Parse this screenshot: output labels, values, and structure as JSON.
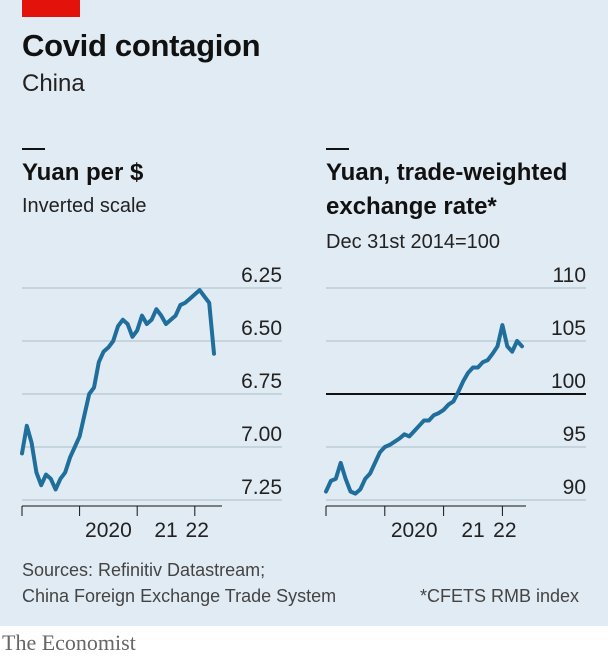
{
  "header": {
    "title": "Covid contagion",
    "subtitle": "China",
    "accent_color": "#e3120b"
  },
  "chart_data": [
    {
      "type": "line",
      "title": "Yuan per $",
      "subtitle": "Inverted scale",
      "y_inverted": true,
      "ylim": [
        6.25,
        7.25
      ],
      "yticks": [
        "6.25",
        "6.50",
        "6.75",
        "7.00",
        "7.25"
      ],
      "xticks": [
        "2020",
        "21",
        "22"
      ],
      "x_range": [
        "2019-01",
        "2022-05"
      ],
      "grid": true,
      "color": "#1f6e9c",
      "x": [
        "2019-01",
        "2019-02",
        "2019-03",
        "2019-04",
        "2019-05",
        "2019-06",
        "2019-07",
        "2019-08",
        "2019-09",
        "2019-10",
        "2019-11",
        "2019-12",
        "2020-01",
        "2020-02",
        "2020-03",
        "2020-04",
        "2020-05",
        "2020-06",
        "2020-07",
        "2020-08",
        "2020-09",
        "2020-10",
        "2020-11",
        "2020-12",
        "2021-01",
        "2021-02",
        "2021-03",
        "2021-04",
        "2021-05",
        "2021-06",
        "2021-07",
        "2021-08",
        "2021-09",
        "2021-10",
        "2021-11",
        "2021-12",
        "2022-01",
        "2022-02",
        "2022-03",
        "2022-04",
        "2022-05"
      ],
      "values": [
        7.03,
        6.9,
        6.98,
        7.12,
        7.18,
        7.13,
        7.15,
        7.2,
        7.15,
        7.12,
        7.05,
        7.0,
        6.95,
        6.85,
        6.75,
        6.72,
        6.6,
        6.55,
        6.53,
        6.5,
        6.43,
        6.4,
        6.42,
        6.48,
        6.45,
        6.38,
        6.42,
        6.4,
        6.35,
        6.38,
        6.42,
        6.4,
        6.38,
        6.33,
        6.32,
        6.3,
        6.28,
        6.26,
        6.29,
        6.32,
        6.56
      ]
    },
    {
      "type": "line",
      "title": "Yuan, trade-weighted exchange rate*",
      "subtitle": "Dec 31st 2014=100",
      "ylim": [
        90,
        110
      ],
      "yticks": [
        "110",
        "105",
        "100",
        "95",
        "90"
      ],
      "reference_line": 100,
      "xticks": [
        "2020",
        "21",
        "22"
      ],
      "x_range": [
        "2019-01",
        "2022-05"
      ],
      "grid": true,
      "color": "#1f6e9c",
      "x": [
        "2019-01",
        "2019-02",
        "2019-03",
        "2019-04",
        "2019-05",
        "2019-06",
        "2019-07",
        "2019-08",
        "2019-09",
        "2019-10",
        "2019-11",
        "2019-12",
        "2020-01",
        "2020-02",
        "2020-03",
        "2020-04",
        "2020-05",
        "2020-06",
        "2020-07",
        "2020-08",
        "2020-09",
        "2020-10",
        "2020-11",
        "2020-12",
        "2021-01",
        "2021-02",
        "2021-03",
        "2021-04",
        "2021-05",
        "2021-06",
        "2021-07",
        "2021-08",
        "2021-09",
        "2021-10",
        "2021-11",
        "2021-12",
        "2022-01",
        "2022-02",
        "2022-03",
        "2022-04",
        "2022-05"
      ],
      "values": [
        90.8,
        91.8,
        92.0,
        93.5,
        92.0,
        90.8,
        90.6,
        91.0,
        92.0,
        92.5,
        93.5,
        94.5,
        95.0,
        95.2,
        95.5,
        95.8,
        96.2,
        96.0,
        96.5,
        97.0,
        97.5,
        97.5,
        98.0,
        98.2,
        98.5,
        99.0,
        99.3,
        100.2,
        101.2,
        102.0,
        102.5,
        102.5,
        103.0,
        103.2,
        103.8,
        104.5,
        106.5,
        104.5,
        104.0,
        105.0,
        104.5
      ]
    }
  ],
  "footer": {
    "source_line1": "Sources: Refinitiv Datastream;",
    "source_line2": "China Foreign Exchange Trade System",
    "note": "*CFETS RMB index",
    "brand": "The Economist"
  }
}
